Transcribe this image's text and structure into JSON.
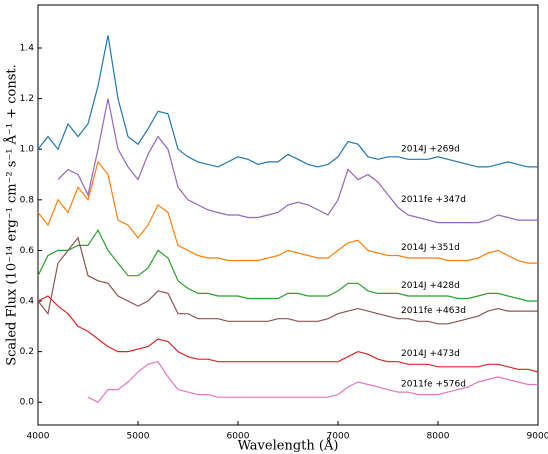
{
  "chart_data": {
    "type": "line",
    "xlabel": "Wavelength (Å)",
    "ylabel": "Scaled Flux (10⁻¹⁴ erg⁻¹ cm⁻² s⁻¹ Å⁻¹ + const.",
    "x": [
      4000,
      4100,
      4200,
      4300,
      4400,
      4500,
      4600,
      4700,
      4800,
      4900,
      5000,
      5100,
      5200,
      5300,
      5400,
      5500,
      5600,
      5700,
      5800,
      5900,
      6000,
      6100,
      6200,
      6300,
      6400,
      6500,
      6600,
      6700,
      6800,
      6900,
      7000,
      7100,
      7200,
      7300,
      7400,
      7500,
      7600,
      7700,
      7800,
      7900,
      8000,
      8100,
      8200,
      8300,
      8400,
      8500,
      8600,
      8700,
      8800,
      8900,
      9000
    ],
    "series": [
      {
        "name": "2014J +269d",
        "color": "#1f77b4",
        "values": [
          1.0,
          1.05,
          1.0,
          1.1,
          1.05,
          1.1,
          1.25,
          1.45,
          1.2,
          1.05,
          1.02,
          1.08,
          1.15,
          1.14,
          1.0,
          0.97,
          0.95,
          0.94,
          0.93,
          0.95,
          0.97,
          0.96,
          0.94,
          0.95,
          0.95,
          0.98,
          0.96,
          0.94,
          0.93,
          0.94,
          0.97,
          1.03,
          1.02,
          0.97,
          0.96,
          0.97,
          0.97,
          0.96,
          0.96,
          0.96,
          0.97,
          0.96,
          0.95,
          0.94,
          0.93,
          0.93,
          0.94,
          0.95,
          0.94,
          0.93,
          0.93
        ]
      },
      {
        "name": "2011fe +347d",
        "color": "#9467bd",
        "values": [
          null,
          null,
          0.88,
          0.92,
          0.9,
          0.82,
          1.0,
          1.2,
          1.0,
          0.93,
          0.88,
          0.98,
          1.05,
          1.0,
          0.85,
          0.8,
          0.78,
          0.76,
          0.75,
          0.74,
          0.74,
          0.73,
          0.73,
          0.74,
          0.75,
          0.78,
          0.79,
          0.78,
          0.76,
          0.74,
          0.8,
          0.92,
          0.88,
          0.9,
          0.87,
          0.82,
          0.77,
          0.74,
          0.73,
          0.72,
          0.71,
          0.71,
          0.71,
          0.71,
          0.71,
          0.72,
          0.74,
          0.73,
          0.72,
          0.72,
          0.72
        ]
      },
      {
        "name": "2014J +351d",
        "color": "#ff7f0e",
        "values": [
          0.75,
          0.7,
          0.8,
          0.75,
          0.85,
          0.8,
          0.95,
          0.9,
          0.72,
          0.7,
          0.65,
          0.7,
          0.78,
          0.75,
          0.62,
          0.6,
          0.58,
          0.57,
          0.57,
          0.56,
          0.56,
          0.56,
          0.56,
          0.57,
          0.58,
          0.6,
          0.59,
          0.58,
          0.57,
          0.57,
          0.6,
          0.63,
          0.64,
          0.6,
          0.59,
          0.58,
          0.58,
          0.57,
          0.57,
          0.57,
          0.57,
          0.56,
          0.56,
          0.56,
          0.57,
          0.59,
          0.6,
          0.58,
          0.56,
          0.55,
          0.55
        ]
      },
      {
        "name": "2014J +428d",
        "color": "#2ca02c",
        "values": [
          0.5,
          0.58,
          0.6,
          0.6,
          0.62,
          0.62,
          0.68,
          0.6,
          0.55,
          0.5,
          0.5,
          0.53,
          0.6,
          0.57,
          0.48,
          0.45,
          0.43,
          0.43,
          0.42,
          0.42,
          0.42,
          0.41,
          0.41,
          0.41,
          0.41,
          0.43,
          0.43,
          0.42,
          0.42,
          0.42,
          0.44,
          0.47,
          0.47,
          0.44,
          0.43,
          0.43,
          0.43,
          0.42,
          0.42,
          0.42,
          0.42,
          0.42,
          0.41,
          0.41,
          0.42,
          0.43,
          0.43,
          0.42,
          0.41,
          0.4,
          0.4
        ]
      },
      {
        "name": "2011fe +463d",
        "color": "#8c564b",
        "values": [
          0.4,
          0.35,
          0.55,
          0.6,
          0.65,
          0.5,
          0.48,
          0.47,
          0.42,
          0.4,
          0.38,
          0.4,
          0.44,
          0.43,
          0.35,
          0.35,
          0.33,
          0.33,
          0.33,
          0.32,
          0.32,
          0.32,
          0.32,
          0.32,
          0.33,
          0.33,
          0.32,
          0.32,
          0.32,
          0.33,
          0.35,
          0.36,
          0.37,
          0.36,
          0.35,
          0.34,
          0.33,
          0.33,
          0.32,
          0.32,
          0.31,
          0.31,
          0.32,
          0.33,
          0.34,
          0.36,
          0.37,
          0.36,
          0.36,
          0.36,
          0.36
        ]
      },
      {
        "name": "2014J +473d",
        "color": "#d62728",
        "values": [
          0.4,
          0.42,
          0.38,
          0.35,
          0.3,
          0.28,
          0.25,
          0.22,
          0.2,
          0.2,
          0.21,
          0.22,
          0.25,
          0.24,
          0.2,
          0.18,
          0.17,
          0.17,
          0.16,
          0.16,
          0.16,
          0.16,
          0.16,
          0.16,
          0.16,
          0.16,
          0.16,
          0.16,
          0.16,
          0.16,
          0.16,
          0.18,
          0.2,
          0.19,
          0.17,
          0.16,
          0.16,
          0.15,
          0.15,
          0.15,
          0.14,
          0.14,
          0.14,
          0.14,
          0.14,
          0.15,
          0.15,
          0.14,
          0.13,
          0.13,
          0.12
        ]
      },
      {
        "name": "2011fe +576d",
        "color": "#e377c2",
        "values": [
          null,
          null,
          null,
          null,
          null,
          0.02,
          0.0,
          0.05,
          0.05,
          0.08,
          0.12,
          0.15,
          0.16,
          0.1,
          0.05,
          0.04,
          0.03,
          0.03,
          0.02,
          0.02,
          0.02,
          0.02,
          0.02,
          0.02,
          0.02,
          0.02,
          0.02,
          0.02,
          0.02,
          0.02,
          0.03,
          0.06,
          0.08,
          0.07,
          0.06,
          0.05,
          0.04,
          0.04,
          0.03,
          0.03,
          0.03,
          0.04,
          0.05,
          0.06,
          0.08,
          0.09,
          0.1,
          0.09,
          0.08,
          0.07,
          0.07
        ]
      }
    ],
    "xlim": [
      4000,
      9000
    ],
    "xticks": [
      4000,
      5000,
      6000,
      7000,
      8000,
      9000
    ],
    "ylim": [
      -0.09,
      1.57
    ],
    "yticks": [
      {
        "value": 0,
        "label": "0.0"
      },
      0.2,
      0.4,
      0.6,
      0.8,
      {
        "value": 1,
        "label": "1.0"
      },
      1.2,
      1.4
    ]
  }
}
